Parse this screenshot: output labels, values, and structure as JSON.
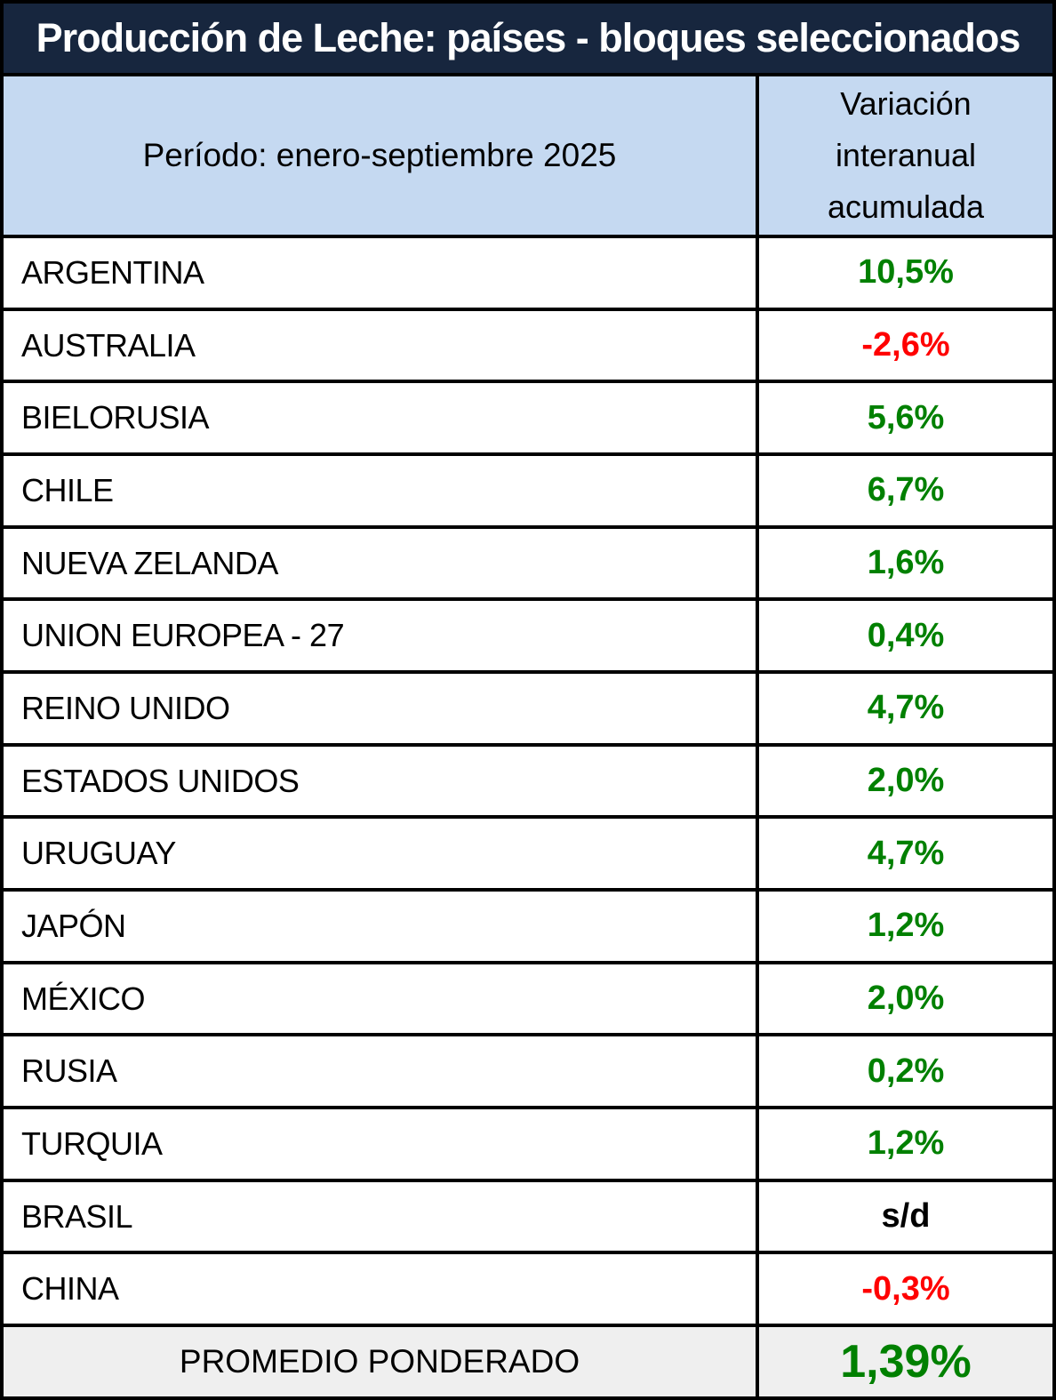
{
  "title": "Producción de Leche: países - bloques seleccionados",
  "header": {
    "period": "Período: enero-septiembre 2025",
    "value_column": "Variación interanual acumulada"
  },
  "rows": [
    {
      "name": "ARGENTINA",
      "value": "10,5%",
      "trend": "positive"
    },
    {
      "name": "AUSTRALIA",
      "value": "-2,6%",
      "trend": "negative"
    },
    {
      "name": "BIELORUSIA",
      "value": "5,6%",
      "trend": "positive"
    },
    {
      "name": "CHILE",
      "value": "6,7%",
      "trend": "positive"
    },
    {
      "name": "NUEVA ZELANDA",
      "value": "1,6%",
      "trend": "positive"
    },
    {
      "name": "UNION EUROPEA - 27",
      "value": "0,4%",
      "trend": "positive"
    },
    {
      "name": "REINO UNIDO",
      "value": "4,7%",
      "trend": "positive"
    },
    {
      "name": "ESTADOS UNIDOS",
      "value": "2,0%",
      "trend": "positive"
    },
    {
      "name": "URUGUAY",
      "value": "4,7%",
      "trend": "positive"
    },
    {
      "name": "JAPÓN",
      "value": "1,2%",
      "trend": "positive"
    },
    {
      "name": "MÉXICO",
      "value": "2,0%",
      "trend": "positive"
    },
    {
      "name": "RUSIA",
      "value": "0,2%",
      "trend": "positive"
    },
    {
      "name": "TURQUIA",
      "value": "1,2%",
      "trend": "positive"
    },
    {
      "name": "BRASIL",
      "value": "s/d",
      "trend": "none"
    },
    {
      "name": "CHINA",
      "value": "-0,3%",
      "trend": "negative"
    }
  ],
  "footer": {
    "label": "PROMEDIO PONDERADO",
    "value": "1,39%",
    "trend": "positive"
  },
  "colors": {
    "positive": "#008000",
    "negative": "#ff0000",
    "none": "#000000",
    "title_bg": "#17263e",
    "title_text": "#ffffff",
    "header_bg": "#c5d9f1",
    "footer_bg": "#efefef",
    "border": "#000000"
  },
  "chart_data": {
    "type": "table",
    "title": "Producción de Leche: países - bloques seleccionados",
    "subtitle": "Período: enero-septiembre 2025",
    "value_column_label": "Variación interanual acumulada",
    "categories": [
      "ARGENTINA",
      "AUSTRALIA",
      "BIELORUSIA",
      "CHILE",
      "NUEVA ZELANDA",
      "UNION EUROPEA - 27",
      "REINO UNIDO",
      "ESTADOS UNIDOS",
      "URUGUAY",
      "JAPÓN",
      "MÉXICO",
      "RUSIA",
      "TURQUIA",
      "BRASIL",
      "CHINA"
    ],
    "values_pct": [
      10.5,
      -2.6,
      5.6,
      6.7,
      1.6,
      0.4,
      4.7,
      2.0,
      4.7,
      1.2,
      2.0,
      0.2,
      1.2,
      null,
      -0.3
    ],
    "no_data_label": "s/d",
    "weighted_average_label": "PROMEDIO PONDERADO",
    "weighted_average_pct": 1.39
  }
}
